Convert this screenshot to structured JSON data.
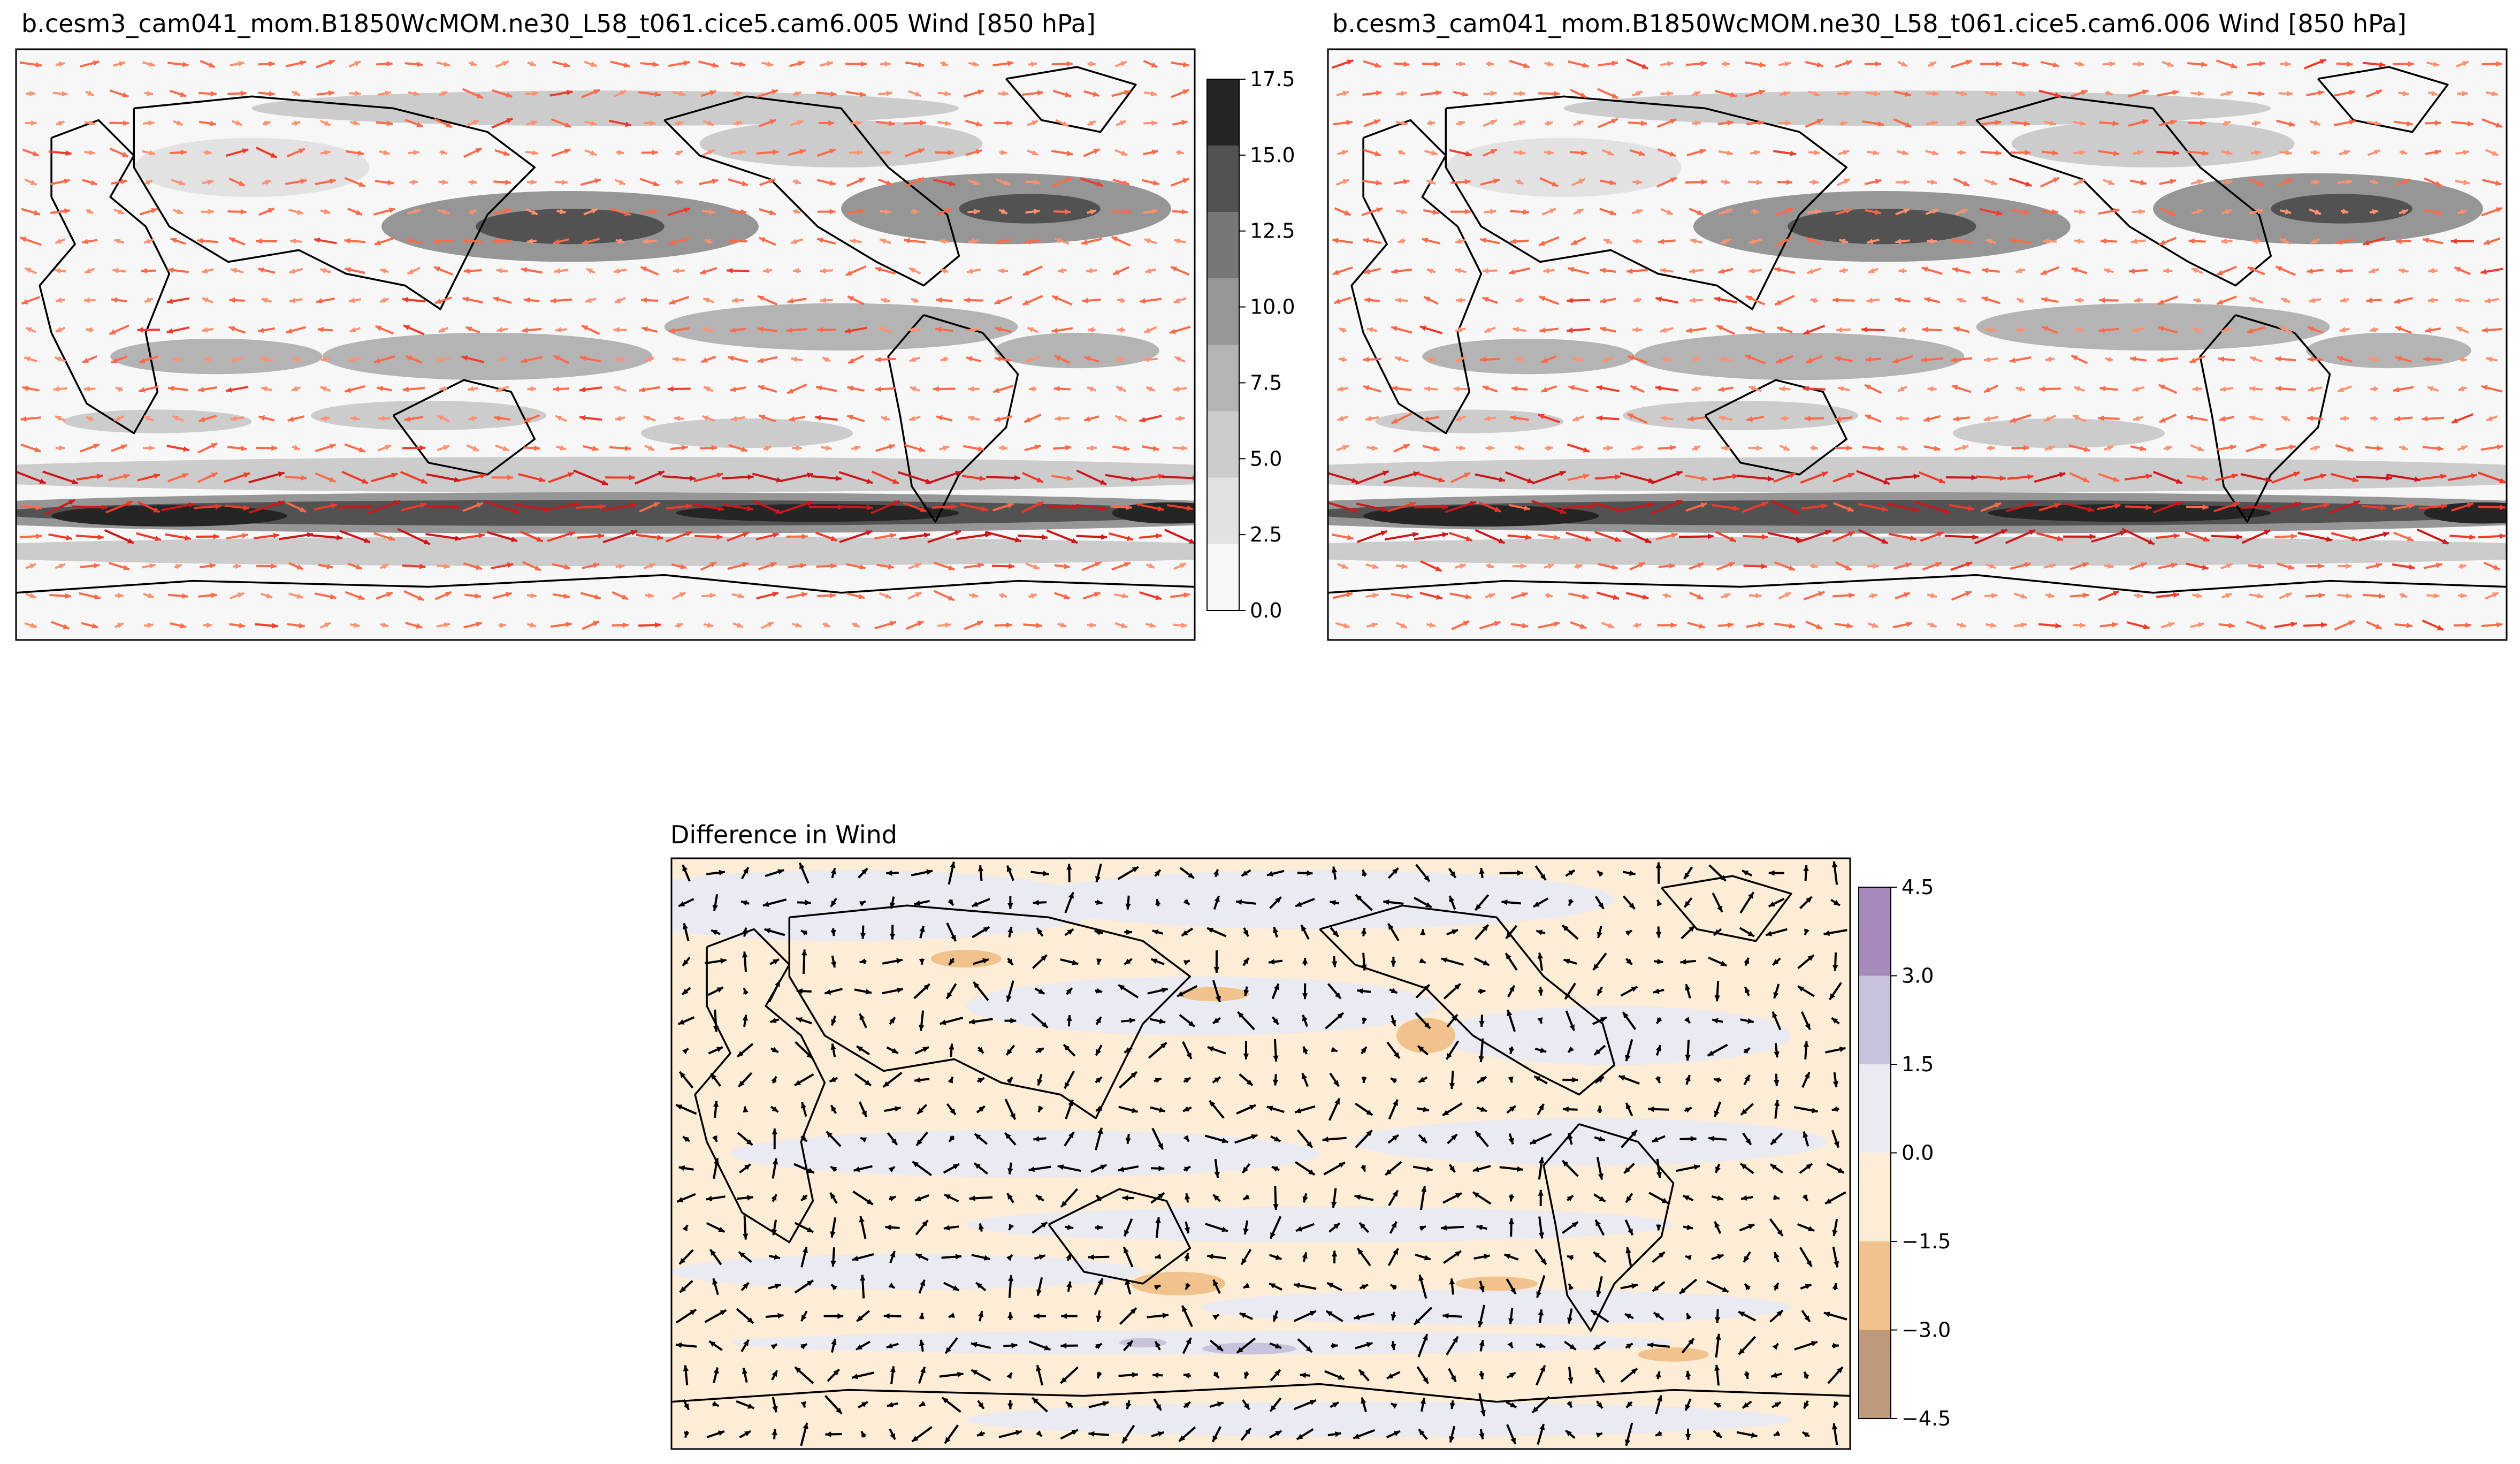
{
  "chart_data": [
    {
      "type": "heatmap",
      "title": "b.cesm3_cam041_mom.B1850WcMOM.ne30_L58_t061.cice5.cam6.005 Wind [850 hPa]",
      "plot": "filled contour of wind speed with wind vectors on a world map",
      "colorbar": {
        "ticks": [
          "0.0",
          "2.5",
          "5.0",
          "7.5",
          "10.0",
          "12.5",
          "15.0",
          "17.5"
        ],
        "range": [
          0,
          17.5
        ],
        "levels": [
          0,
          2.5,
          5,
          7.5,
          10,
          12.5,
          15,
          17.5
        ],
        "colors": [
          "#f7f7f7",
          "#e2e2e2",
          "#cccccc",
          "#b4b4b4",
          "#969696",
          "#777777",
          "#525252",
          "#252525"
        ]
      },
      "vector_colors": [
        "#fcbba1",
        "#fc9272",
        "#fb6a4a",
        "#ef3b2c",
        "#cb181d",
        "#99000d"
      ]
    },
    {
      "type": "heatmap",
      "title": "b.cesm3_cam041_mom.B1850WcMOM.ne30_L58_t061.cice5.cam6.006 Wind [850 hPa]",
      "plot": "filled contour of wind speed with wind vectors on a world map",
      "colorbar": null,
      "vector_colors": [
        "#fcbba1",
        "#fc9272",
        "#fb6a4a",
        "#ef3b2c",
        "#cb181d",
        "#99000d"
      ]
    },
    {
      "type": "heatmap",
      "title": "Difference in Wind",
      "plot": "filled contour of wind speed difference with difference vectors on a world map",
      "colorbar": {
        "ticks": [
          "4.5",
          "3.0",
          "1.5",
          "0.0",
          "−1.5",
          "−3.0",
          "−4.5"
        ],
        "range": [
          -4.5,
          4.5
        ],
        "levels": [
          -4.5,
          -3.0,
          -1.5,
          0.0,
          1.5,
          3.0,
          4.5
        ],
        "colors": [
          "#be9a7c",
          "#f2c28c",
          "#fdecd6",
          "#eaeaf3",
          "#c9c2dd",
          "#a58bbc"
        ]
      },
      "vector_colors": [
        "#000000"
      ]
    }
  ]
}
